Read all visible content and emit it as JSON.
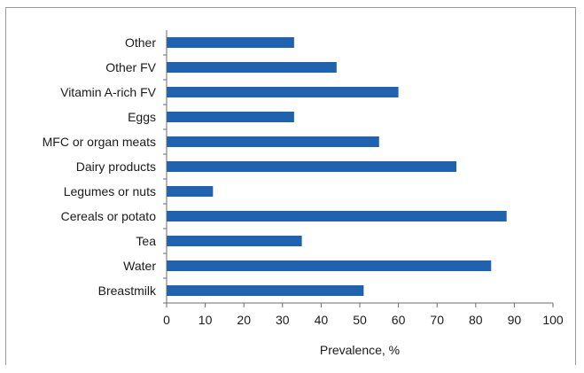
{
  "chart_data": {
    "type": "bar",
    "orientation": "horizontal",
    "categories": [
      "Other",
      "Other FV",
      "Vitamin A-rich FV",
      "Eggs",
      "MFC or organ meats",
      "Dairy products",
      "Legumes or nuts",
      "Cereals or potato",
      "Tea",
      "Water",
      "Breastmilk"
    ],
    "values": [
      33,
      44,
      60,
      33,
      55,
      75,
      12,
      88,
      35,
      84,
      51
    ],
    "xlabel": "Prevalence, %",
    "ylabel": "",
    "xlim": [
      0,
      100
    ],
    "xticks": [
      "0",
      "10",
      "20",
      "30",
      "40",
      "50",
      "60",
      "70",
      "80",
      "90",
      "100"
    ],
    "grid": false,
    "legend": "none",
    "bar_color": "#1f63b0"
  }
}
